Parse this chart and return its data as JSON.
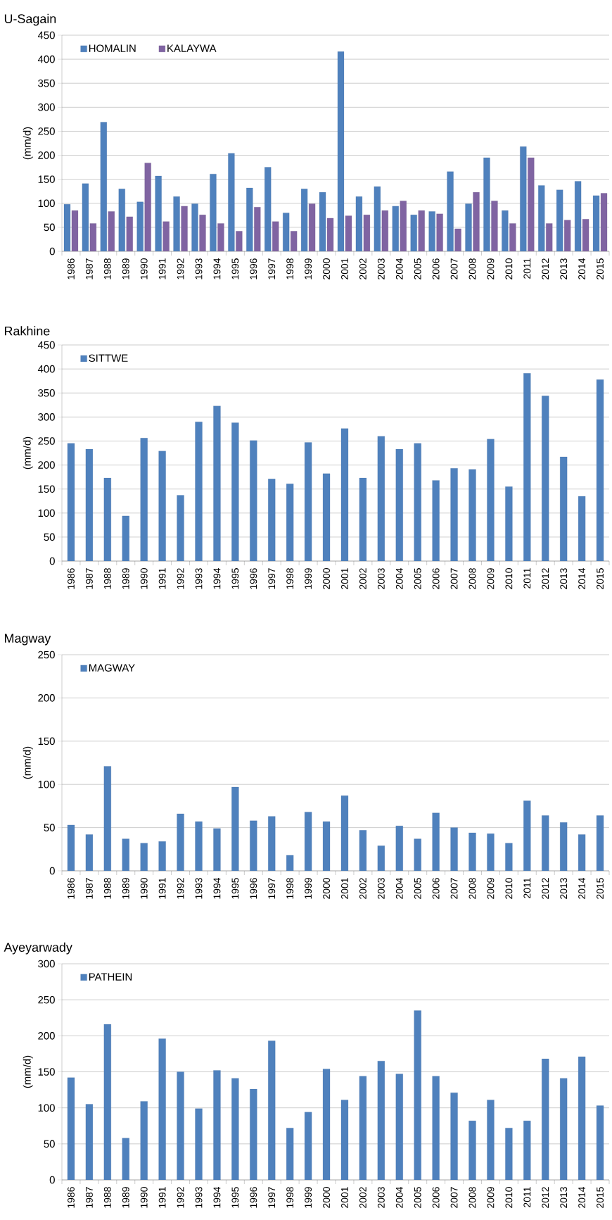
{
  "chart_data": [
    {
      "type": "bar",
      "title": "U-Sagain",
      "ylabel": "(mm/d)",
      "categories": [
        "1986",
        "1987",
        "1988",
        "1989",
        "1990",
        "1991",
        "1992",
        "1993",
        "1994",
        "1995",
        "1996",
        "1997",
        "1998",
        "1999",
        "2000",
        "2001",
        "2002",
        "2003",
        "2004",
        "2005",
        "2006",
        "2007",
        "2008",
        "2009",
        "2010",
        "2011",
        "2012",
        "2013",
        "2014",
        "2015"
      ],
      "series": [
        {
          "name": "HOMALIN",
          "color": "#4f81bd",
          "values": [
            98,
            141,
            269,
            130,
            103,
            157,
            114,
            99,
            161,
            204,
            132,
            175,
            80,
            130,
            123,
            416,
            114,
            135,
            94,
            76,
            83,
            166,
            99,
            195,
            85,
            218,
            137,
            128,
            146,
            116
          ]
        },
        {
          "name": "KALAYWA",
          "color": "#8064a2",
          "values": [
            85,
            58,
            83,
            72,
            184,
            62,
            94,
            76,
            58,
            42,
            92,
            62,
            42,
            99,
            69,
            74,
            76,
            85,
            105,
            85,
            78,
            47,
            123,
            105,
            58,
            195,
            58,
            65,
            67,
            121
          ]
        }
      ],
      "ylim": [
        0,
        450
      ],
      "yticks": [
        0,
        50,
        100,
        150,
        200,
        250,
        300,
        350,
        400,
        450
      ],
      "grid": "y",
      "legend": "top left"
    },
    {
      "type": "bar",
      "title": "Rakhine",
      "ylabel": "(mm/d)",
      "categories": [
        "1986",
        "1987",
        "1988",
        "1989",
        "1990",
        "1991",
        "1992",
        "1993",
        "1994",
        "1995",
        "1996",
        "1997",
        "1998",
        "1999",
        "2000",
        "2001",
        "2002",
        "2003",
        "2004",
        "2005",
        "2006",
        "2007",
        "2008",
        "2009",
        "2010",
        "2011",
        "2012",
        "2013",
        "2014",
        "2015"
      ],
      "series": [
        {
          "name": "SITTWE",
          "color": "#4f81bd",
          "values": [
            245,
            233,
            173,
            94,
            256,
            229,
            137,
            290,
            323,
            288,
            251,
            171,
            161,
            247,
            182,
            276,
            173,
            260,
            233,
            245,
            168,
            193,
            191,
            254,
            155,
            391,
            344,
            217,
            135,
            378
          ]
        }
      ],
      "ylim": [
        0,
        450
      ],
      "yticks": [
        0,
        50,
        100,
        150,
        200,
        250,
        300,
        350,
        400,
        450
      ],
      "grid": "y",
      "legend": "top left"
    },
    {
      "type": "bar",
      "title": "Magway",
      "ylabel": "(mm/d)",
      "categories": [
        "1986",
        "1987",
        "1988",
        "1989",
        "1990",
        "1991",
        "1992",
        "1993",
        "1994",
        "1995",
        "1996",
        "1997",
        "1998",
        "1999",
        "2000",
        "2001",
        "2002",
        "2003",
        "2004",
        "2005",
        "2006",
        "2007",
        "2008",
        "2009",
        "2010",
        "2011",
        "2012",
        "2013",
        "2014",
        "2015"
      ],
      "series": [
        {
          "name": "MAGWAY",
          "color": "#4f81bd",
          "values": [
            53,
            42,
            121,
            37,
            32,
            34,
            66,
            57,
            49,
            97,
            58,
            63,
            18,
            68,
            57,
            87,
            47,
            29,
            52,
            37,
            67,
            50,
            44,
            43,
            32,
            81,
            64,
            56,
            42,
            64
          ]
        }
      ],
      "ylim": [
        0,
        250
      ],
      "yticks": [
        0,
        50,
        100,
        150,
        200,
        250
      ],
      "grid": "y",
      "legend": "top left"
    },
    {
      "type": "bar",
      "title": "Ayeyarwady",
      "ylabel": "(mm/d)",
      "categories": [
        "1986",
        "1987",
        "1988",
        "1989",
        "1990",
        "1991",
        "1992",
        "1993",
        "1994",
        "1995",
        "1996",
        "1997",
        "1998",
        "1999",
        "2000",
        "2001",
        "2002",
        "2003",
        "2004",
        "2005",
        "2006",
        "2007",
        "2008",
        "2009",
        "2010",
        "2011",
        "2012",
        "2013",
        "2014",
        "2015"
      ],
      "series": [
        {
          "name": "PATHEIN",
          "color": "#4f81bd",
          "values": [
            142,
            105,
            216,
            58,
            109,
            196,
            150,
            99,
            152,
            141,
            126,
            193,
            72,
            94,
            154,
            111,
            144,
            165,
            147,
            235,
            144,
            121,
            82,
            111,
            72,
            82,
            168,
            141,
            171,
            103
          ]
        }
      ],
      "ylim": [
        0,
        300
      ],
      "yticks": [
        0,
        50,
        100,
        150,
        200,
        250,
        300
      ],
      "grid": "y",
      "legend": "top left"
    }
  ]
}
